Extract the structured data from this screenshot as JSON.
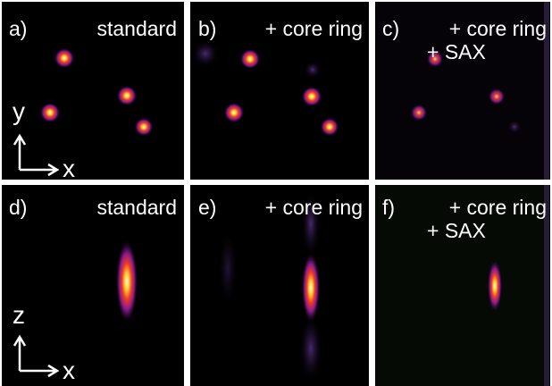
{
  "panels": [
    {
      "label": "a)",
      "text": [
        "standard"
      ]
    },
    {
      "label": "b)",
      "text": [
        "+ core ring"
      ]
    },
    {
      "label": "c)",
      "text": [
        "+ core ring",
        "+ SAX"
      ]
    },
    {
      "label": "d)",
      "text": [
        "standard"
      ]
    },
    {
      "label": "e)",
      "text": [
        "+ core ring"
      ]
    },
    {
      "label": "f)",
      "text": [
        "+ core ring",
        "+ SAX"
      ]
    }
  ],
  "axes": [
    {
      "vertical": "y",
      "horizontal": "x"
    },
    {
      "vertical": "z",
      "horizontal": "x"
    }
  ]
}
